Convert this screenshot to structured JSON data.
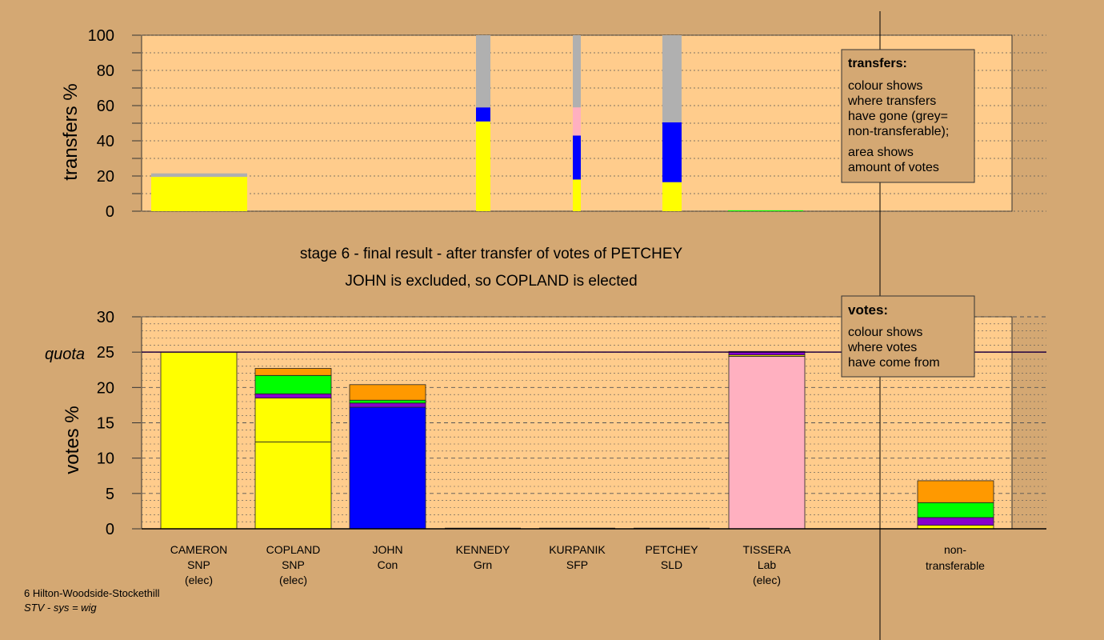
{
  "colors": {
    "background": "#d4a873",
    "plot_area": "#ffcc8c",
    "legend_box": "#d4a873",
    "SNP": "#ffff00",
    "Con": "#0000ff",
    "Lab": "#ffb0c0",
    "Grn": "#00ff00",
    "SLD": "#ff9900",
    "SFP": "#8800cc",
    "non_transferable": "#b0b0b0",
    "quota_line": "#200040"
  },
  "headline": {
    "line1": "stage 6 - final result - after transfer of votes of PETCHEY",
    "line2": "JOHN is excluded, so COPLAND is elected"
  },
  "legend_transfers": {
    "title": "transfers:",
    "lines": [
      "colour shows",
      "where transfers",
      "have gone (grey=",
      "non-transferable);",
      "area shows",
      "amount of votes"
    ]
  },
  "legend_votes": {
    "title": "votes:",
    "lines": [
      "colour shows",
      "where votes",
      "have come from"
    ]
  },
  "footer": {
    "ward": "6 Hilton-Woodside-Stockethill",
    "system": "STV - sys = wig"
  },
  "candidates": [
    {
      "name": "CAMERON",
      "party": "SNP",
      "status": "(elec)"
    },
    {
      "name": "COPLAND",
      "party": "SNP",
      "status": "(elec)"
    },
    {
      "name": "JOHN",
      "party": "Con",
      "status": ""
    },
    {
      "name": "KENNEDY",
      "party": "Grn",
      "status": ""
    },
    {
      "name": "KURPANIK",
      "party": "SFP",
      "status": ""
    },
    {
      "name": "PETCHEY",
      "party": "SLD",
      "status": ""
    },
    {
      "name": "TISSERA",
      "party": "Lab",
      "status": "(elec)"
    }
  ],
  "non_transferable_label": [
    "non-",
    "transferable"
  ],
  "chart_data": [
    {
      "type": "bar",
      "name": "transfers",
      "ylabel": "transfers %",
      "ylim": [
        0,
        100
      ],
      "yticks": [
        0,
        20,
        40,
        60,
        80,
        100
      ],
      "grid": "dotted",
      "bars": [
        {
          "segments": [
            {
              "party": "SNP",
              "value": 19.5
            },
            {
              "party": "non_transferable",
              "value": 2
            }
          ]
        },
        {
          "segments": [
            {
              "party": "SNP",
              "value": 51
            },
            {
              "party": "Con",
              "value": 8
            },
            {
              "party": "non_transferable",
              "value": 41
            }
          ]
        },
        {
          "segments": [
            {
              "party": "SNP",
              "value": 18
            },
            {
              "party": "Con",
              "value": 25
            },
            {
              "party": "Lab",
              "value": 16
            },
            {
              "party": "non_transferable",
              "value": 41
            }
          ]
        },
        {
          "segments": [
            {
              "party": "SNP",
              "value": 16.5
            },
            {
              "party": "Con",
              "value": 34
            },
            {
              "party": "non_transferable",
              "value": 49.5
            }
          ]
        },
        {
          "segments": [
            {
              "party": "Grn",
              "value": 0.5
            }
          ]
        }
      ]
    },
    {
      "type": "bar",
      "name": "votes",
      "ylabel": "votes %",
      "ylim": [
        0,
        30
      ],
      "yticks": [
        0,
        5,
        10,
        15,
        20,
        25,
        30
      ],
      "quota": 25,
      "quota_label": "quota",
      "bars": [
        {
          "candidate": "CAMERON",
          "segments": [
            {
              "party": "SNP",
              "value": 25
            }
          ]
        },
        {
          "candidate": "COPLAND",
          "segments": [
            {
              "party": "SNP",
              "value": 12.3
            },
            {
              "party": "SNP",
              "value": 6.2
            },
            {
              "party": "SFP",
              "value": 0.6
            },
            {
              "party": "Grn",
              "value": 2.6
            },
            {
              "party": "SLD",
              "value": 1
            }
          ]
        },
        {
          "candidate": "JOHN",
          "segments": [
            {
              "party": "Con",
              "value": 17.2
            },
            {
              "party": "SFP",
              "value": 0.6
            },
            {
              "party": "Grn",
              "value": 0.4
            },
            {
              "party": "SLD",
              "value": 2.2
            }
          ]
        },
        {
          "candidate": "KENNEDY",
          "segments": []
        },
        {
          "candidate": "KURPANIK",
          "segments": []
        },
        {
          "candidate": "PETCHEY",
          "segments": []
        },
        {
          "candidate": "TISSERA",
          "segments": [
            {
              "party": "Lab",
              "value": 24.4
            },
            {
              "party": "SNP",
              "value": 0.2
            },
            {
              "party": "SFP",
              "value": 0.4
            },
            {
              "party": "SLD",
              "value": 0.1
            }
          ]
        },
        {
          "candidate": "non-transferable",
          "segments": [
            {
              "party": "SNP",
              "value": 0.5
            },
            {
              "party": "SFP",
              "value": 1.1
            },
            {
              "party": "Grn",
              "value": 2.1
            },
            {
              "party": "SLD",
              "value": 3.1
            }
          ]
        }
      ]
    }
  ]
}
